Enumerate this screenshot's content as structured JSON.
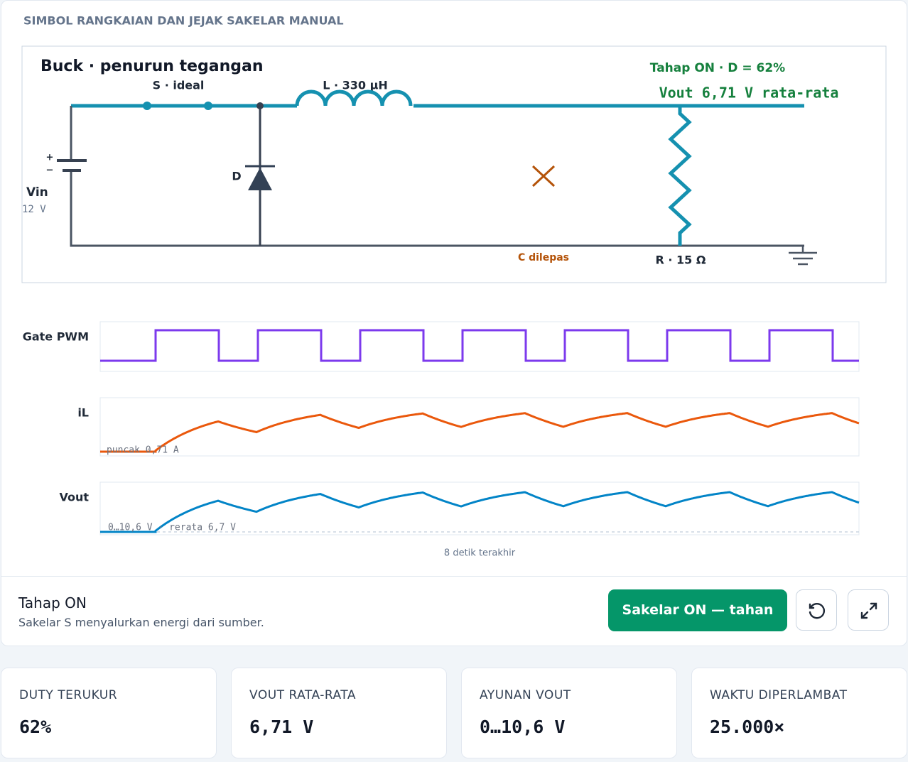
{
  "header": {
    "title": "SIMBOL RANGKAIAN DAN JEJAK SAKELAR MANUAL"
  },
  "circuit": {
    "title": "Buck · penurun tegangan",
    "switch_label": "S · ideal",
    "inductor_label": "L · 330 µH",
    "phase_label": "Tahap ON · D = 62%",
    "vout_label": "Vout 6,71 V rata-rata",
    "plus": "+",
    "minus": "−",
    "source_label": "Vin",
    "source_value": "12 V",
    "diode_label": "D",
    "capacitor_label": "C dilepas",
    "resistor_label": "R · 15 Ω"
  },
  "traces": {
    "gate_label": "Gate PWM",
    "il_label": "iL",
    "vout_label": "Vout",
    "il_note": "puncak 0,71 A",
    "vout_note": "0…10,6 V · rerata 6,7 V",
    "footer": "8 detik terakhir"
  },
  "status": {
    "title": "Tahap ON",
    "description": "Sakelar S menyalurkan energi dari sumber.",
    "button": "Sakelar ON — tahan"
  },
  "stats": [
    {
      "label": "DUTY TERUKUR",
      "value": "62%"
    },
    {
      "label": "VOUT RATA-RATA",
      "value": "6,71 V"
    },
    {
      "label": "AYUNAN VOUT",
      "value": "0…10,6 V"
    },
    {
      "label": "WAKTU DIPERLAMBAT",
      "value": "25.000×"
    }
  ]
}
